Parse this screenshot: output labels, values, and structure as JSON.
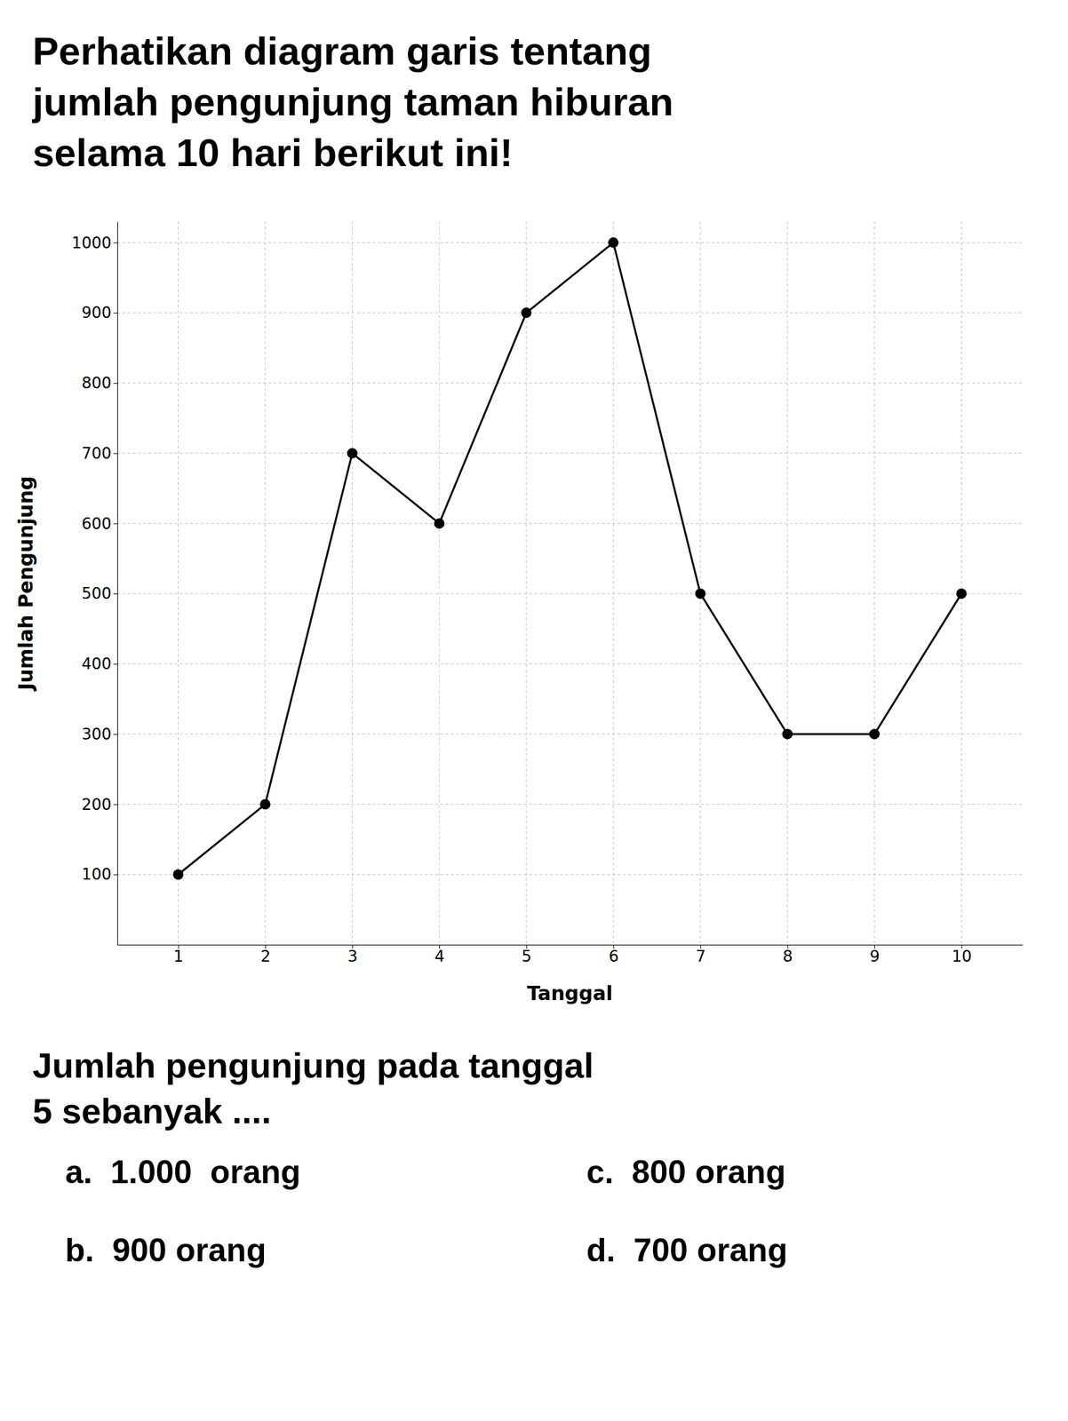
{
  "chart_data": {
    "type": "line",
    "title": "Perhatikan diagram garis tentang\njumlah pengunjung taman hiburan\nselama 10 hari berikut ini!",
    "x": [
      1,
      2,
      3,
      4,
      5,
      6,
      7,
      8,
      9,
      10
    ],
    "values": [
      100,
      200,
      700,
      600,
      900,
      1000,
      500,
      300,
      300,
      500
    ],
    "xlabel": "Tanggal",
    "ylabel": "Jumlah Pengunjung",
    "xlim": [
      0.3,
      10.7
    ],
    "xticks": [
      1,
      2,
      3,
      4,
      5,
      6,
      7,
      8,
      9,
      10
    ],
    "ylim": [
      0,
      1030
    ],
    "yticks": [
      100,
      200,
      300,
      400,
      500,
      600,
      700,
      800,
      900,
      1000
    ],
    "grid": true,
    "color": "#000000",
    "marker": "circle",
    "annotations": [
      "Jumlah pengunjung pada tanggal\n5 sebanyak ....",
      "a.  1.000  orang",
      "b.  900 orang",
      "c.  800 orang",
      "d.  700 orang"
    ]
  }
}
